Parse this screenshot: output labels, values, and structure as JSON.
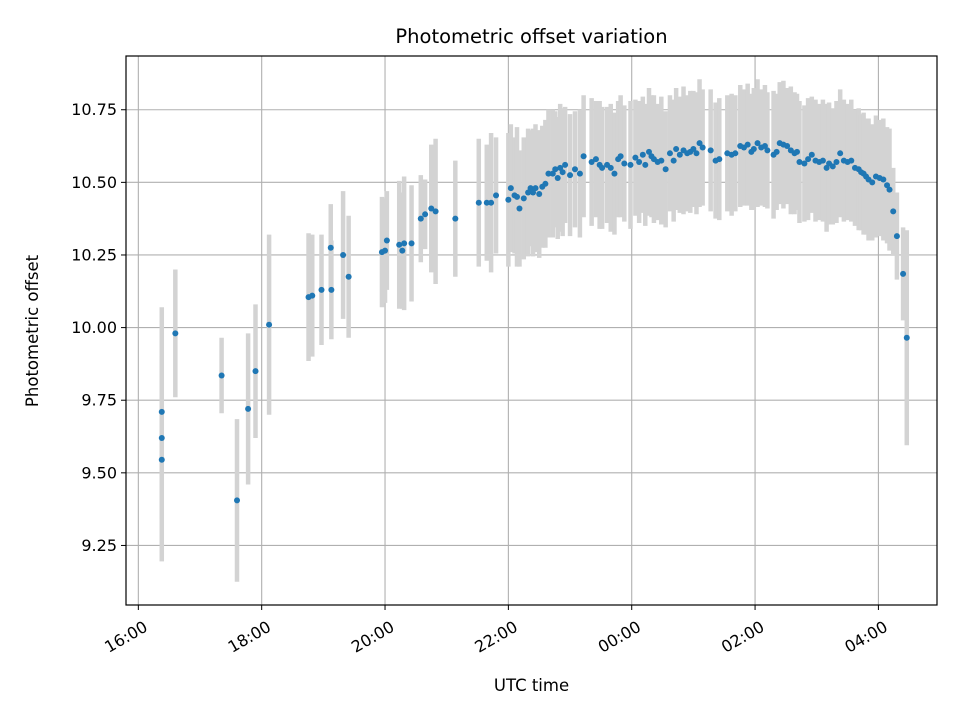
{
  "chart_data": {
    "type": "scatter",
    "title": "Photometric offset variation",
    "xlabel": "UTC time",
    "ylabel": "Photometric offset",
    "x_unit": "hours after 16:00 UTC",
    "xlim": [
      -0.2,
      12.95
    ],
    "ylim": [
      9.045,
      10.935
    ],
    "grid": true,
    "colors": {
      "point": "#1f77b4",
      "errorbar": "#d3d3d3",
      "grid": "#b0b0b0"
    },
    "x_ticks": [
      {
        "v": 0,
        "label": "16:00"
      },
      {
        "v": 2,
        "label": "18:00"
      },
      {
        "v": 4,
        "label": "20:00"
      },
      {
        "v": 6,
        "label": "22:00"
      },
      {
        "v": 8,
        "label": "00:00"
      },
      {
        "v": 10,
        "label": "02:00"
      },
      {
        "v": 12,
        "label": "04:00"
      }
    ],
    "y_ticks": [
      {
        "v": 9.25,
        "label": "9.25"
      },
      {
        "v": 9.5,
        "label": "9.50"
      },
      {
        "v": 9.75,
        "label": "9.75"
      },
      {
        "v": 10.0,
        "label": "10.00"
      },
      {
        "v": 10.25,
        "label": "10.25"
      },
      {
        "v": 10.5,
        "label": "10.50"
      },
      {
        "v": 10.75,
        "label": "10.75"
      }
    ],
    "points": [
      [
        0.38,
        9.71,
        0.36
      ],
      [
        0.38,
        9.62,
        0.28
      ],
      [
        0.38,
        9.545,
        0.35
      ],
      [
        0.6,
        9.98,
        0.22
      ],
      [
        1.35,
        9.835,
        0.13
      ],
      [
        1.6,
        9.405,
        0.28
      ],
      [
        1.78,
        9.72,
        0.26
      ],
      [
        1.9,
        9.85,
        0.23
      ],
      [
        2.12,
        10.01,
        0.31
      ],
      [
        2.76,
        10.105,
        0.22
      ],
      [
        2.82,
        10.11,
        0.21
      ],
      [
        2.97,
        10.13,
        0.19
      ],
      [
        3.12,
        10.275,
        0.15
      ],
      [
        3.13,
        10.13,
        0.17
      ],
      [
        3.32,
        10.25,
        0.22
      ],
      [
        3.41,
        10.175,
        0.21
      ],
      [
        3.95,
        10.26,
        0.19
      ],
      [
        4.0,
        10.265,
        0.18
      ],
      [
        4.03,
        10.3,
        0.17
      ],
      [
        4.23,
        10.285,
        0.22
      ],
      [
        4.28,
        10.265,
        0.2
      ],
      [
        4.31,
        10.29,
        0.23
      ],
      [
        4.43,
        10.29,
        0.2
      ],
      [
        4.58,
        10.375,
        0.15
      ],
      [
        4.65,
        10.39,
        0.12
      ],
      [
        4.75,
        10.41,
        0.22
      ],
      [
        4.82,
        10.4,
        0.25
      ],
      [
        5.14,
        10.375,
        0.2
      ],
      [
        5.52,
        10.43,
        0.22
      ],
      [
        5.65,
        10.43,
        0.2
      ],
      [
        5.72,
        10.43,
        0.24
      ],
      [
        5.8,
        10.455,
        0.2
      ],
      [
        6.0,
        10.44,
        0.23
      ],
      [
        6.04,
        10.48,
        0.22
      ],
      [
        6.1,
        10.455,
        0.2
      ],
      [
        6.14,
        10.45,
        0.24
      ],
      [
        6.18,
        10.41,
        0.2
      ],
      [
        6.25,
        10.445,
        0.21
      ],
      [
        6.32,
        10.465,
        0.22
      ],
      [
        6.36,
        10.48,
        0.2
      ],
      [
        6.4,
        10.465,
        0.22
      ],
      [
        6.44,
        10.48,
        0.22
      ],
      [
        6.5,
        10.46,
        0.22
      ],
      [
        6.55,
        10.485,
        0.21
      ],
      [
        6.6,
        10.495,
        0.22
      ],
      [
        6.65,
        10.53,
        0.22
      ],
      [
        6.72,
        10.53,
        0.22
      ],
      [
        6.76,
        10.545,
        0.2
      ],
      [
        6.8,
        10.515,
        0.21
      ],
      [
        6.84,
        10.55,
        0.22
      ],
      [
        6.88,
        10.535,
        0.22
      ],
      [
        6.92,
        10.56,
        0.2
      ],
      [
        7.0,
        10.525,
        0.21
      ],
      [
        7.08,
        10.545,
        0.2
      ],
      [
        7.16,
        10.53,
        0.22
      ],
      [
        7.22,
        10.59,
        0.21
      ],
      [
        7.35,
        10.57,
        0.22
      ],
      [
        7.42,
        10.58,
        0.2
      ],
      [
        7.48,
        10.56,
        0.22
      ],
      [
        7.52,
        10.55,
        0.21
      ],
      [
        7.6,
        10.56,
        0.2
      ],
      [
        7.66,
        10.55,
        0.22
      ],
      [
        7.72,
        10.53,
        0.21
      ],
      [
        7.78,
        10.58,
        0.2
      ],
      [
        7.82,
        10.59,
        0.21
      ],
      [
        7.88,
        10.565,
        0.2
      ],
      [
        7.98,
        10.56,
        0.22
      ],
      [
        8.06,
        10.585,
        0.2
      ],
      [
        8.12,
        10.57,
        0.21
      ],
      [
        8.18,
        10.595,
        0.2
      ],
      [
        8.22,
        10.56,
        0.21
      ],
      [
        8.28,
        10.605,
        0.22
      ],
      [
        8.32,
        10.59,
        0.21
      ],
      [
        8.36,
        10.58,
        0.22
      ],
      [
        8.42,
        10.57,
        0.2
      ],
      [
        8.48,
        10.575,
        0.22
      ],
      [
        8.55,
        10.545,
        0.2
      ],
      [
        8.62,
        10.6,
        0.2
      ],
      [
        8.68,
        10.575,
        0.21
      ],
      [
        8.72,
        10.615,
        0.21
      ],
      [
        8.78,
        10.595,
        0.2
      ],
      [
        8.84,
        10.61,
        0.22
      ],
      [
        8.9,
        10.6,
        0.2
      ],
      [
        8.95,
        10.605,
        0.21
      ],
      [
        9.0,
        10.615,
        0.2
      ],
      [
        9.05,
        10.6,
        0.21
      ],
      [
        9.1,
        10.635,
        0.22
      ],
      [
        9.15,
        10.62,
        0.2
      ],
      [
        9.28,
        10.61,
        0.21
      ],
      [
        9.36,
        10.575,
        0.2
      ],
      [
        9.42,
        10.58,
        0.21
      ],
      [
        9.55,
        10.6,
        0.2
      ],
      [
        9.62,
        10.595,
        0.21
      ],
      [
        9.68,
        10.6,
        0.2
      ],
      [
        9.76,
        10.625,
        0.21
      ],
      [
        9.82,
        10.62,
        0.2
      ],
      [
        9.88,
        10.63,
        0.21
      ],
      [
        9.94,
        10.605,
        0.2
      ],
      [
        9.98,
        10.615,
        0.21
      ],
      [
        10.04,
        10.635,
        0.22
      ],
      [
        10.1,
        10.62,
        0.2
      ],
      [
        10.16,
        10.625,
        0.21
      ],
      [
        10.2,
        10.61,
        0.2
      ],
      [
        10.3,
        10.595,
        0.22
      ],
      [
        10.35,
        10.605,
        0.2
      ],
      [
        10.4,
        10.635,
        0.21
      ],
      [
        10.46,
        10.63,
        0.22
      ],
      [
        10.52,
        10.625,
        0.2
      ],
      [
        10.58,
        10.61,
        0.22
      ],
      [
        10.64,
        10.6,
        0.21
      ],
      [
        10.68,
        10.605,
        0.2
      ],
      [
        10.72,
        10.57,
        0.21
      ],
      [
        10.8,
        10.565,
        0.2
      ],
      [
        10.86,
        10.58,
        0.21
      ],
      [
        10.92,
        10.595,
        0.2
      ],
      [
        10.98,
        10.575,
        0.21
      ],
      [
        11.04,
        10.57,
        0.2
      ],
      [
        11.1,
        10.575,
        0.21
      ],
      [
        11.16,
        10.55,
        0.22
      ],
      [
        11.2,
        10.565,
        0.21
      ],
      [
        11.26,
        10.555,
        0.2
      ],
      [
        11.32,
        10.57,
        0.21
      ],
      [
        11.38,
        10.6,
        0.22
      ],
      [
        11.44,
        10.575,
        0.21
      ],
      [
        11.5,
        10.57,
        0.2
      ],
      [
        11.56,
        10.575,
        0.21
      ],
      [
        11.62,
        10.55,
        0.2
      ],
      [
        11.68,
        10.545,
        0.21
      ],
      [
        11.72,
        10.535,
        0.2
      ],
      [
        11.76,
        10.53,
        0.21
      ],
      [
        11.8,
        10.52,
        0.2
      ],
      [
        11.84,
        10.51,
        0.21
      ],
      [
        11.9,
        10.5,
        0.2
      ],
      [
        11.96,
        10.52,
        0.21
      ],
      [
        12.02,
        10.515,
        0.2
      ],
      [
        12.08,
        10.51,
        0.21
      ],
      [
        12.14,
        10.49,
        0.2
      ],
      [
        12.18,
        10.475,
        0.21
      ],
      [
        12.24,
        10.4,
        0.15
      ],
      [
        12.3,
        10.315,
        0.15
      ],
      [
        12.4,
        10.185,
        0.16
      ],
      [
        12.46,
        9.965,
        0.37
      ]
    ]
  }
}
